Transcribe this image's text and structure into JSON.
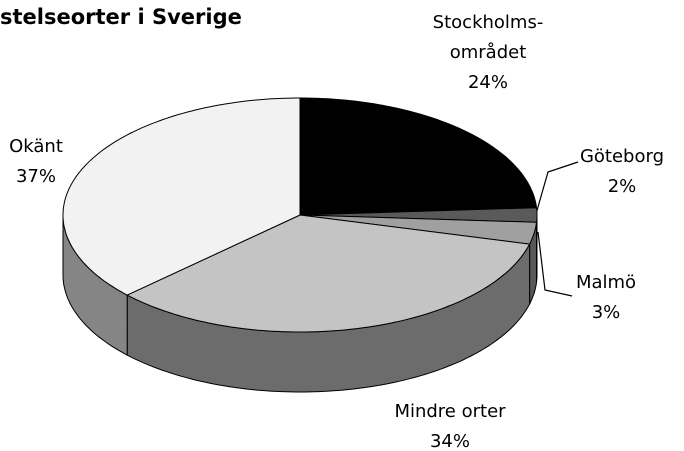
{
  "chart_data": {
    "type": "pie3d",
    "title": "stelseorter i Sverige",
    "categories": [
      "Stockholms-\nområdet",
      "Göteborg",
      "Malmö",
      "Mindre orter",
      "Okänt"
    ],
    "values": [
      24,
      2,
      3,
      34,
      37
    ],
    "value_labels": [
      "24%",
      "2%",
      "3%",
      "34%",
      "37%"
    ],
    "colors": [
      "#000000",
      "#5a5a5a",
      "#a0a0a0",
      "#c4c4c4",
      "#f2f2f2"
    ]
  }
}
